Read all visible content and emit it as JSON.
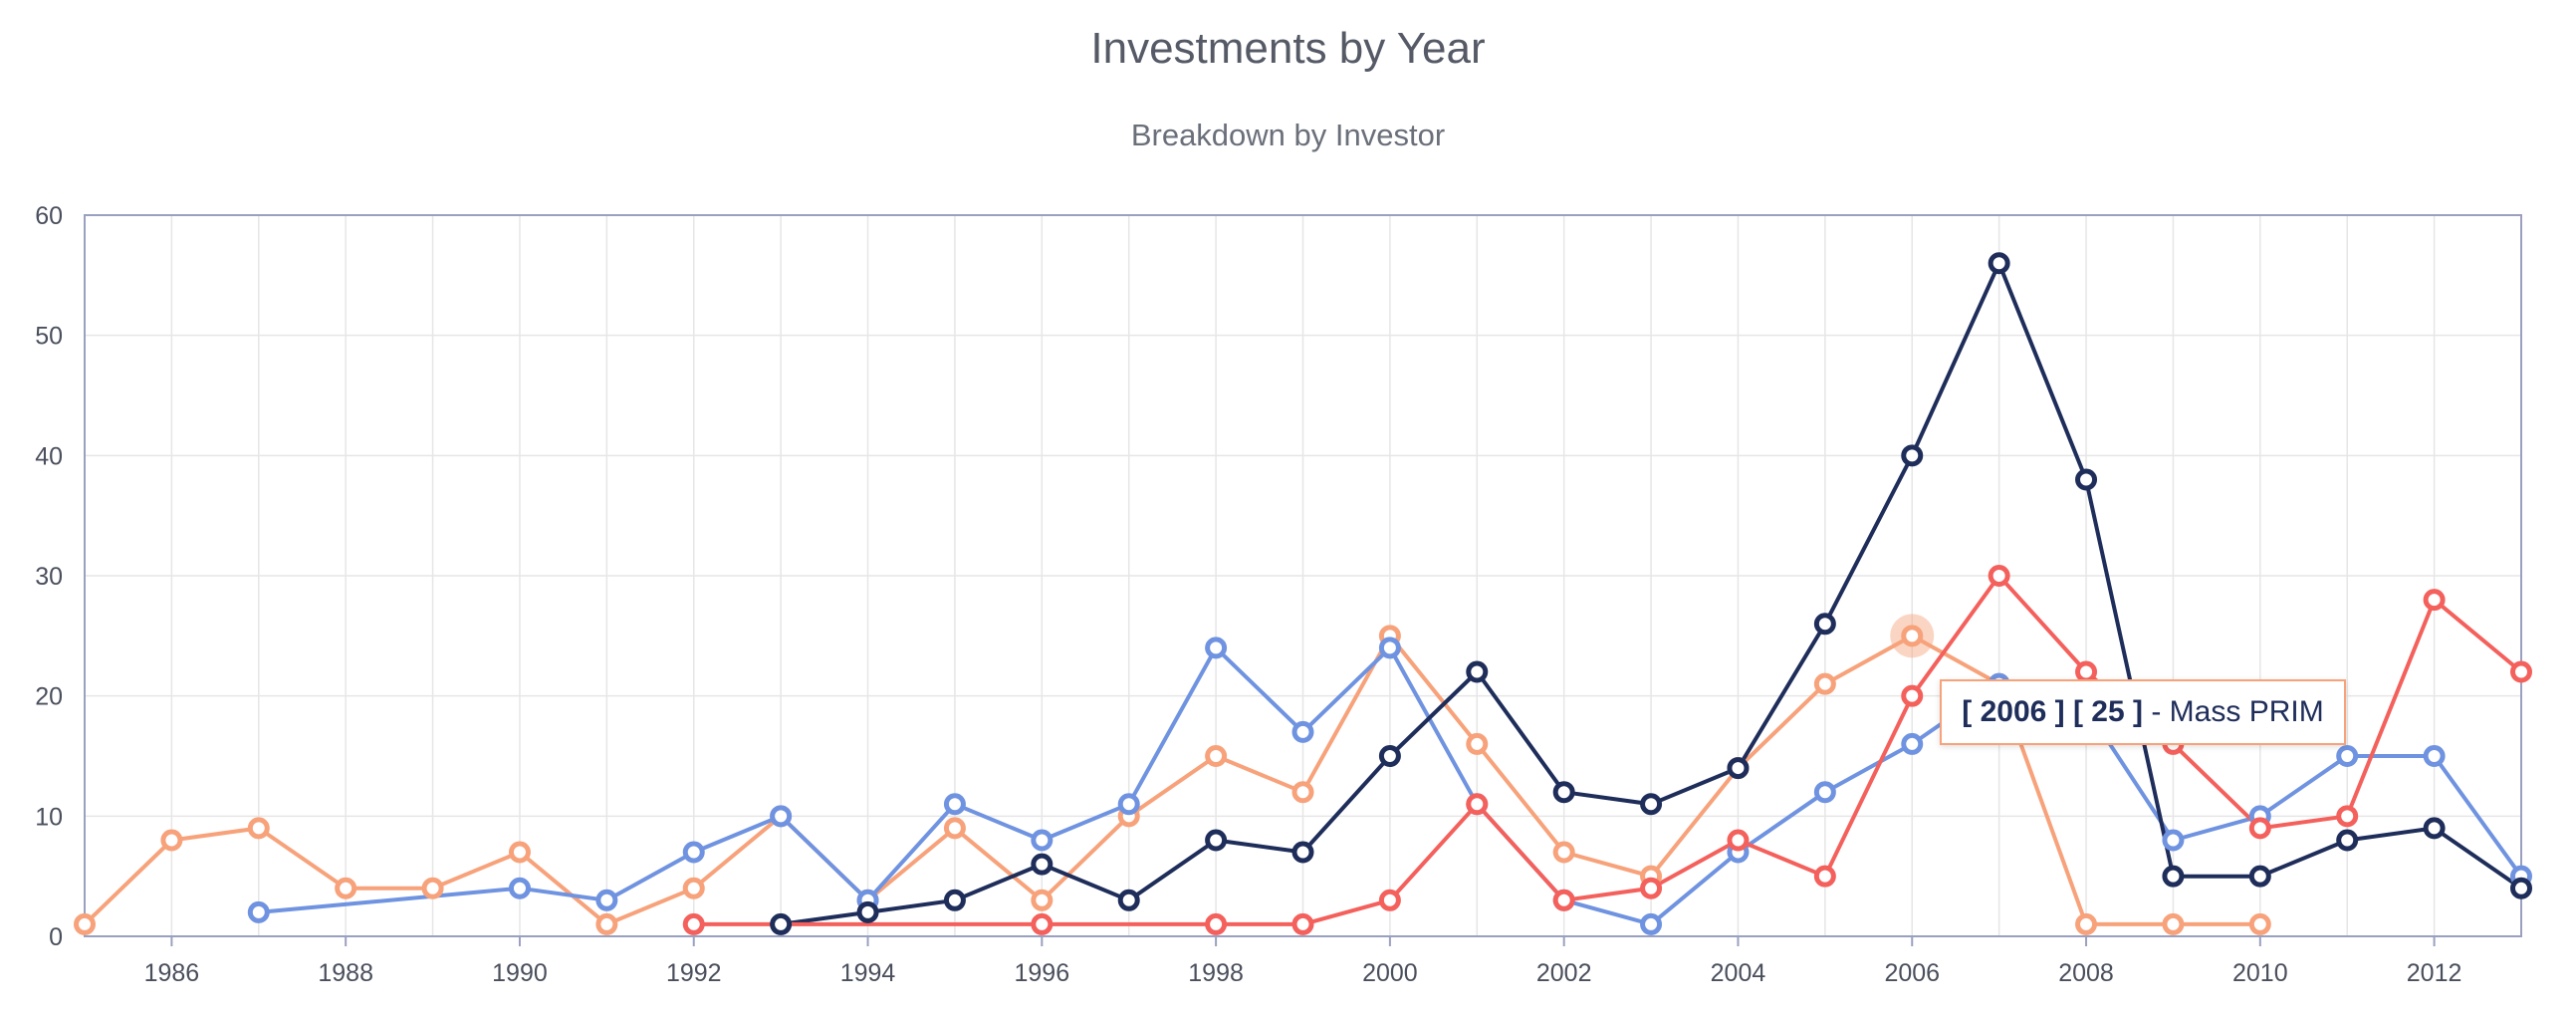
{
  "chart_data": {
    "type": "line",
    "title": "Investments by Year",
    "subtitle": "Breakdown by Investor",
    "xlabel": "",
    "ylabel": "",
    "xlim": [
      1985,
      2013
    ],
    "ylim": [
      0,
      60
    ],
    "x_ticks": [
      1986,
      1988,
      1990,
      1992,
      1994,
      1996,
      1998,
      2000,
      2002,
      2004,
      2006,
      2008,
      2010,
      2012
    ],
    "y_ticks": [
      0,
      10,
      20,
      30,
      40,
      50,
      60
    ],
    "grid": true,
    "series": [
      {
        "color": "#f7a27a",
        "points": [
          [
            1985,
            1
          ],
          [
            1986,
            8
          ],
          [
            1987,
            9
          ],
          [
            1988,
            4
          ],
          [
            1989,
            4
          ],
          [
            1990,
            7
          ],
          [
            1991,
            1
          ],
          [
            1992,
            4
          ],
          [
            1993,
            10
          ],
          [
            1994,
            3
          ],
          [
            1995,
            9
          ],
          [
            1996,
            3
          ],
          [
            1997,
            10
          ],
          [
            1998,
            15
          ],
          [
            1999,
            12
          ],
          [
            2000,
            25
          ],
          [
            2001,
            16
          ],
          [
            2002,
            7
          ],
          [
            2003,
            5
          ],
          [
            2004,
            14
          ],
          [
            2005,
            21
          ],
          [
            2006,
            25
          ],
          [
            2007,
            21
          ],
          [
            2008,
            1
          ],
          [
            2009,
            1
          ],
          [
            2010,
            1
          ]
        ]
      },
      {
        "color": "#6f93e0",
        "points": [
          [
            1987,
            2
          ],
          [
            1990,
            4
          ],
          [
            1991,
            3
          ],
          [
            1992,
            7
          ],
          [
            1993,
            10
          ],
          [
            1994,
            3
          ],
          [
            1995,
            11
          ],
          [
            1996,
            8
          ],
          [
            1997,
            11
          ],
          [
            1998,
            24
          ],
          [
            1999,
            17
          ],
          [
            2000,
            24
          ],
          [
            2001,
            11
          ],
          [
            2002,
            3
          ],
          [
            2003,
            1
          ],
          [
            2004,
            7
          ],
          [
            2005,
            12
          ],
          [
            2006,
            16
          ],
          [
            2007,
            21
          ],
          [
            2008,
            19
          ],
          [
            2009,
            8
          ],
          [
            2010,
            10
          ],
          [
            2011,
            15
          ],
          [
            2012,
            15
          ],
          [
            2013,
            5
          ]
        ]
      },
      {
        "color": "#1e2d5a",
        "points": [
          [
            1993,
            1
          ],
          [
            1994,
            2
          ],
          [
            1995,
            3
          ],
          [
            1996,
            6
          ],
          [
            1997,
            3
          ],
          [
            1998,
            8
          ],
          [
            1999,
            7
          ],
          [
            2000,
            15
          ],
          [
            2001,
            22
          ],
          [
            2002,
            12
          ],
          [
            2003,
            11
          ],
          [
            2004,
            14
          ],
          [
            2005,
            26
          ],
          [
            2006,
            40
          ],
          [
            2007,
            56
          ],
          [
            2008,
            38
          ],
          [
            2009,
            5
          ],
          [
            2010,
            5
          ],
          [
            2011,
            8
          ],
          [
            2012,
            9
          ],
          [
            2013,
            4
          ]
        ]
      },
      {
        "color": "#f4605c",
        "points": [
          [
            1992,
            1
          ],
          [
            1996,
            1
          ],
          [
            1998,
            1
          ],
          [
            1999,
            1
          ],
          [
            2000,
            3
          ],
          [
            2001,
            11
          ],
          [
            2002,
            3
          ],
          [
            2003,
            4
          ],
          [
            2004,
            8
          ],
          [
            2005,
            5
          ],
          [
            2006,
            20
          ],
          [
            2007,
            30
          ],
          [
            2008,
            22
          ],
          [
            2009,
            16
          ],
          [
            2010,
            9
          ],
          [
            2011,
            10
          ],
          [
            2012,
            28
          ],
          [
            2013,
            22
          ]
        ]
      }
    ],
    "tooltip": {
      "x": "2006",
      "y": "25",
      "series_name": "Mass PRIM",
      "x_text": "[ 2006 ]",
      "y_text": "[ 25 ]",
      "suffix_text": "- Mass PRIM"
    },
    "colors": {
      "grid": "#e6e6e6",
      "axis": "#9aa0c0",
      "highlight": "#f7a27a"
    }
  }
}
